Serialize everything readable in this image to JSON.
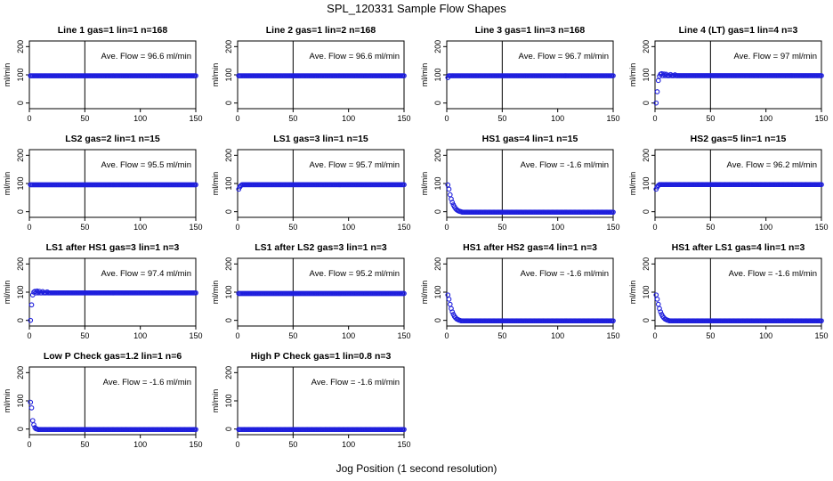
{
  "suptitle": "SPL_120331  Sample Flow Shapes",
  "xlabel": "Jog Position (1 second resolution)",
  "colors": {
    "points": "#1f1fdd",
    "axes": "#000000"
  },
  "chart_data": [
    {
      "type": "scatter",
      "title": "Line 1 gas=1 lin=1 n=168",
      "ylabel": "ml/min",
      "annotation": "Ave. Flow = 96.6  ml/min",
      "xlim": [
        0,
        150
      ],
      "ylim": [
        -20,
        220
      ],
      "xticks": [
        0,
        50,
        100,
        150
      ],
      "yticks": [
        0,
        100,
        200
      ],
      "vline": 50,
      "shape": "flat",
      "steady": 96.6,
      "initial": []
    },
    {
      "type": "scatter",
      "title": "Line 2 gas=1 lin=2 n=168",
      "ylabel": "ml/min",
      "annotation": "Ave. Flow = 96.6  ml/min",
      "xlim": [
        0,
        150
      ],
      "ylim": [
        -20,
        220
      ],
      "xticks": [
        0,
        50,
        100,
        150
      ],
      "yticks": [
        0,
        100,
        200
      ],
      "vline": 50,
      "shape": "flat",
      "steady": 96.6,
      "initial": []
    },
    {
      "type": "scatter",
      "title": "Line 3 gas=1 lin=3 n=168",
      "ylabel": "ml/min",
      "annotation": "Ave. Flow = 96.7  ml/min",
      "xlim": [
        0,
        150
      ],
      "ylim": [
        -20,
        220
      ],
      "xticks": [
        0,
        50,
        100,
        150
      ],
      "yticks": [
        0,
        100,
        200
      ],
      "vline": 50,
      "shape": "flat",
      "steady": 96.7,
      "initial": [
        [
          1,
          90
        ]
      ]
    },
    {
      "type": "scatter",
      "title": "Line 4 (LT) gas=1 lin=4 n=3",
      "ylabel": "ml/min",
      "annotation": "Ave. Flow = 97  ml/min",
      "xlim": [
        0,
        150
      ],
      "ylim": [
        -20,
        220
      ],
      "xticks": [
        0,
        50,
        100,
        150
      ],
      "yticks": [
        0,
        100,
        200
      ],
      "vline": 50,
      "shape": "flat",
      "steady": 97,
      "initial": [
        [
          1,
          0
        ],
        [
          2,
          40
        ],
        [
          3,
          80
        ],
        [
          4,
          95
        ],
        [
          5,
          102
        ],
        [
          6,
          104
        ],
        [
          8,
          103
        ],
        [
          10,
          102
        ],
        [
          14,
          101
        ],
        [
          18,
          100
        ]
      ]
    },
    {
      "type": "scatter",
      "title": "LS2 gas=2 lin=1 n=15",
      "ylabel": "ml/min",
      "annotation": "Ave. Flow = 95.5  ml/min",
      "xlim": [
        0,
        150
      ],
      "ylim": [
        -20,
        220
      ],
      "xticks": [
        0,
        50,
        100,
        150
      ],
      "yticks": [
        0,
        100,
        200
      ],
      "vline": 50,
      "shape": "flat",
      "steady": 95.5,
      "initial": []
    },
    {
      "type": "scatter",
      "title": "LS1 gas=3 lin=1 n=15",
      "ylabel": "ml/min",
      "annotation": "Ave. Flow = 95.7  ml/min",
      "xlim": [
        0,
        150
      ],
      "ylim": [
        -20,
        220
      ],
      "xticks": [
        0,
        50,
        100,
        150
      ],
      "yticks": [
        0,
        100,
        200
      ],
      "vline": 50,
      "shape": "flat",
      "steady": 95.7,
      "initial": [
        [
          1,
          80
        ],
        [
          2,
          88
        ],
        [
          3,
          93
        ]
      ]
    },
    {
      "type": "scatter",
      "title": "HS1 gas=4 lin=1 n=15",
      "ylabel": "ml/min",
      "annotation": "Ave. Flow = -1.6  ml/min",
      "xlim": [
        0,
        150
      ],
      "ylim": [
        -20,
        220
      ],
      "xticks": [
        0,
        50,
        100,
        150
      ],
      "yticks": [
        0,
        100,
        200
      ],
      "vline": 50,
      "shape": "decay",
      "steady": -1.6,
      "initial": [
        [
          1,
          95
        ],
        [
          2,
          80
        ],
        [
          3,
          60
        ],
        [
          4,
          45
        ],
        [
          5,
          33
        ],
        [
          6,
          24
        ],
        [
          7,
          17
        ],
        [
          8,
          11
        ],
        [
          9,
          7
        ],
        [
          10,
          4
        ],
        [
          11,
          2
        ],
        [
          12,
          1
        ],
        [
          13,
          0
        ]
      ]
    },
    {
      "type": "scatter",
      "title": "HS2 gas=5 lin=1 n=15",
      "ylabel": "ml/min",
      "annotation": "Ave. Flow = 96.2  ml/min",
      "xlim": [
        0,
        150
      ],
      "ylim": [
        -20,
        220
      ],
      "xticks": [
        0,
        50,
        100,
        150
      ],
      "yticks": [
        0,
        100,
        200
      ],
      "vline": 50,
      "shape": "flat",
      "steady": 96.2,
      "initial": [
        [
          1,
          80
        ],
        [
          2,
          88
        ],
        [
          3,
          93
        ]
      ]
    },
    {
      "type": "scatter",
      "title": "LS1 after HS1 gas=3 lin=1 n=3",
      "ylabel": "ml/min",
      "annotation": "Ave. Flow = 97.4  ml/min",
      "xlim": [
        0,
        150
      ],
      "ylim": [
        -20,
        220
      ],
      "xticks": [
        0,
        50,
        100,
        150
      ],
      "yticks": [
        0,
        100,
        200
      ],
      "vline": 50,
      "shape": "flat",
      "steady": 97.4,
      "initial": [
        [
          1,
          0
        ],
        [
          2,
          55
        ],
        [
          3,
          90
        ],
        [
          4,
          100
        ],
        [
          5,
          103
        ],
        [
          7,
          104
        ],
        [
          9,
          103
        ],
        [
          12,
          102
        ],
        [
          16,
          101
        ]
      ]
    },
    {
      "type": "scatter",
      "title": "LS1 after LS2 gas=3 lin=1 n=3",
      "ylabel": "ml/min",
      "annotation": "Ave. Flow = 95.2  ml/min",
      "xlim": [
        0,
        150
      ],
      "ylim": [
        -20,
        220
      ],
      "xticks": [
        0,
        50,
        100,
        150
      ],
      "yticks": [
        0,
        100,
        200
      ],
      "vline": 50,
      "shape": "flat",
      "steady": 95.2,
      "initial": []
    },
    {
      "type": "scatter",
      "title": "HS1 after HS2 gas=4 lin=1 n=3",
      "ylabel": "ml/min",
      "annotation": "Ave. Flow = -1.6  ml/min",
      "xlim": [
        0,
        150
      ],
      "ylim": [
        -20,
        220
      ],
      "xticks": [
        0,
        50,
        100,
        150
      ],
      "yticks": [
        0,
        100,
        200
      ],
      "vline": 50,
      "shape": "decay",
      "steady": -1.6,
      "initial": [
        [
          1,
          90
        ],
        [
          2,
          75
        ],
        [
          3,
          57
        ],
        [
          4,
          42
        ],
        [
          5,
          30
        ],
        [
          6,
          21
        ],
        [
          7,
          14
        ],
        [
          8,
          9
        ],
        [
          9,
          5
        ],
        [
          10,
          3
        ],
        [
          11,
          1
        ],
        [
          12,
          0
        ]
      ]
    },
    {
      "type": "scatter",
      "title": "HS1 after LS1 gas=4 lin=1 n=3",
      "ylabel": "ml/min",
      "annotation": "Ave. Flow = -1.6  ml/min",
      "xlim": [
        0,
        150
      ],
      "ylim": [
        -20,
        220
      ],
      "xticks": [
        0,
        50,
        100,
        150
      ],
      "yticks": [
        0,
        100,
        200
      ],
      "vline": 50,
      "shape": "decay",
      "steady": -1.6,
      "initial": [
        [
          1,
          90
        ],
        [
          2,
          75
        ],
        [
          3,
          57
        ],
        [
          4,
          42
        ],
        [
          5,
          30
        ],
        [
          6,
          21
        ],
        [
          7,
          14
        ],
        [
          8,
          9
        ],
        [
          9,
          5
        ],
        [
          10,
          3
        ],
        [
          11,
          1
        ],
        [
          12,
          0
        ]
      ]
    },
    {
      "type": "scatter",
      "title": "Low P Check gas=1.2 lin=1 n=6",
      "ylabel": "ml/min",
      "annotation": "Ave. Flow = -1.6  ml/min",
      "xlim": [
        0,
        150
      ],
      "ylim": [
        -20,
        220
      ],
      "xticks": [
        0,
        50,
        100,
        150
      ],
      "yticks": [
        0,
        100,
        200
      ],
      "vline": 50,
      "shape": "decay",
      "steady": -1.6,
      "initial": [
        [
          1,
          95
        ],
        [
          2,
          75
        ],
        [
          3,
          30
        ],
        [
          4,
          15
        ],
        [
          5,
          5
        ],
        [
          6,
          1
        ],
        [
          7,
          0
        ]
      ]
    },
    {
      "type": "scatter",
      "title": "High P Check gas=1 lin=0.8 n=3",
      "ylabel": "ml/min",
      "annotation": "Ave. Flow = -1.6  ml/min",
      "xlim": [
        0,
        150
      ],
      "ylim": [
        -20,
        220
      ],
      "xticks": [
        0,
        50,
        100,
        150
      ],
      "yticks": [
        0,
        100,
        200
      ],
      "vline": 50,
      "shape": "flat",
      "steady": -1.6,
      "initial": []
    }
  ]
}
